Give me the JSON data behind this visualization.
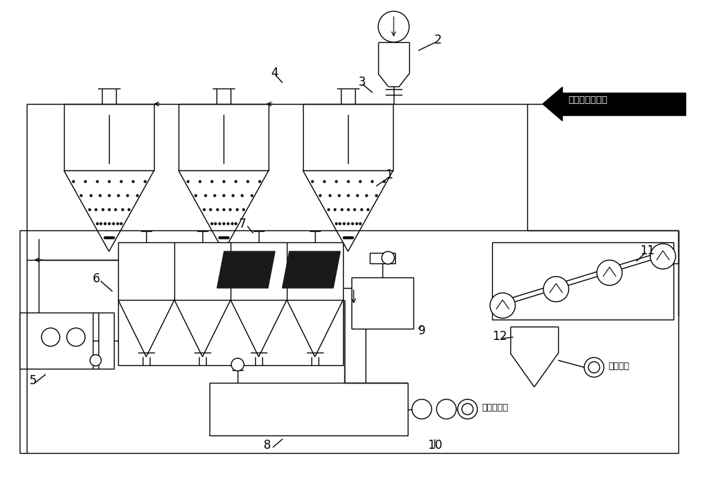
{
  "bg_color": "#ffffff",
  "text_inlet": "电炉含磷泥污水",
  "text_kiln": "到回转窑",
  "text_furnace": "去电炉工段",
  "lw": 1.0
}
